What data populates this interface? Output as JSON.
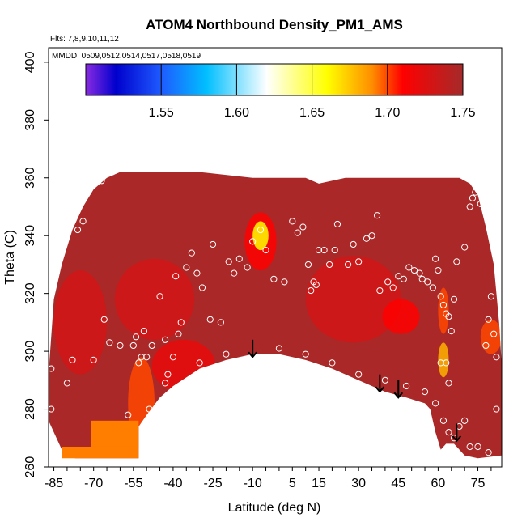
{
  "chart_data": {
    "type": "heatmap",
    "title": "ATOM4 Northbound Density_PM1_AMS",
    "annotations": {
      "flights": "Flts: 7,8,9,10,11,12",
      "dates": "MMDD: 0509,0512,0514,0517,0518,0519"
    },
    "xlabel": "Latitude (deg N)",
    "ylabel": "Theta (C)",
    "xlim": [
      -87,
      84
    ],
    "ylim": [
      260,
      405
    ],
    "x_ticks": [
      -85,
      -70,
      -55,
      -40,
      -25,
      -10,
      5,
      15,
      30,
      45,
      60,
      75
    ],
    "x_tick_labels": [
      "-85",
      "-70",
      "-55",
      "-40",
      "-25",
      "-10",
      "5",
      "15",
      "30",
      "45",
      "60",
      "75"
    ],
    "y_ticks": [
      260,
      280,
      300,
      320,
      340,
      360,
      380,
      400
    ],
    "y_tick_labels": [
      "260",
      "280",
      "300",
      "320",
      "340",
      "360",
      "380",
      "400"
    ],
    "colorbar": {
      "range": [
        1.5,
        1.75
      ],
      "ticks": [
        1.55,
        1.6,
        1.65,
        1.7,
        1.75
      ],
      "tick_labels": [
        "1.55",
        "1.60",
        "1.65",
        "1.70",
        "1.75"
      ],
      "stops": [
        {
          "v": 1.5,
          "c": "#8a2be2"
        },
        {
          "v": 1.52,
          "c": "#0000cd"
        },
        {
          "v": 1.55,
          "c": "#1e5bff"
        },
        {
          "v": 1.58,
          "c": "#00bfff"
        },
        {
          "v": 1.62,
          "c": "#ffffff"
        },
        {
          "v": 1.66,
          "c": "#ffff00"
        },
        {
          "v": 1.69,
          "c": "#ff8c00"
        },
        {
          "v": 1.71,
          "c": "#ff0000"
        },
        {
          "v": 1.75,
          "c": "#a52a2a"
        }
      ]
    },
    "field": {
      "background": 1.748,
      "upper_boundary": [
        [
          -87,
          292
        ],
        [
          -85,
          318
        ],
        [
          -82,
          330
        ],
        [
          -78,
          342
        ],
        [
          -74,
          350
        ],
        [
          -70,
          356
        ],
        [
          -65,
          360
        ],
        [
          -60,
          362
        ],
        [
          -50,
          362
        ],
        [
          -30,
          362
        ],
        [
          -10,
          360
        ],
        [
          10,
          360
        ],
        [
          15,
          358
        ],
        [
          25,
          360
        ],
        [
          40,
          360
        ],
        [
          55,
          360
        ],
        [
          62,
          360
        ],
        [
          68,
          360
        ],
        [
          72,
          358
        ],
        [
          75,
          354
        ],
        [
          78,
          343
        ],
        [
          81,
          330
        ],
        [
          83,
          310
        ],
        [
          84,
          295
        ]
      ],
      "lower_boundary": [
        [
          -87,
          276
        ],
        [
          -82,
          266
        ],
        [
          -77,
          263
        ],
        [
          -72,
          263
        ],
        [
          -60,
          263
        ],
        [
          -53,
          263
        ],
        [
          -53,
          274
        ],
        [
          -50,
          278
        ],
        [
          -45,
          284
        ],
        [
          -40,
          288
        ],
        [
          -30,
          294
        ],
        [
          -20,
          297
        ],
        [
          -10,
          299
        ],
        [
          0,
          299
        ],
        [
          10,
          297
        ],
        [
          20,
          294
        ],
        [
          30,
          290
        ],
        [
          40,
          286
        ],
        [
          48,
          284
        ],
        [
          55,
          282
        ],
        [
          57,
          280
        ],
        [
          59,
          272
        ],
        [
          61,
          266
        ],
        [
          63,
          268
        ],
        [
          66,
          268
        ],
        [
          70,
          264
        ],
        [
          75,
          263
        ],
        [
          84,
          264
        ]
      ],
      "hotspots": [
        {
          "x": -7,
          "y": 340,
          "v": 1.66,
          "rx": 3,
          "ry": 5
        },
        {
          "x": -7,
          "y": 338,
          "v": 1.71,
          "rx": 6,
          "ry": 10
        },
        {
          "x": 62,
          "y": 297,
          "v": 1.68,
          "rx": 2,
          "ry": 6
        },
        {
          "x": 62,
          "y": 314,
          "v": 1.7,
          "rx": 2,
          "ry": 8
        },
        {
          "x": -52,
          "y": 282,
          "v": 1.7,
          "rx": 5,
          "ry": 16
        },
        {
          "x": 80,
          "y": 305,
          "v": 1.7,
          "rx": 4,
          "ry": 6
        },
        {
          "x": 46,
          "y": 312,
          "v": 1.71,
          "rx": 7,
          "ry": 6
        },
        {
          "x": -36,
          "y": 295,
          "v": 1.72,
          "rx": 12,
          "ry": 9
        },
        {
          "x": -47,
          "y": 318,
          "v": 1.73,
          "rx": 15,
          "ry": 14
        },
        {
          "x": 28,
          "y": 318,
          "v": 1.73,
          "rx": 18,
          "ry": 15
        },
        {
          "x": -75,
          "y": 310,
          "v": 1.73,
          "rx": 10,
          "ry": 18
        }
      ],
      "patches": [
        {
          "x0": -82,
          "x1": -53,
          "y0": 263,
          "y1": 267,
          "v": 1.692
        },
        {
          "x0": -71,
          "x1": -53,
          "y0": 267,
          "y1": 276,
          "v": 1.692
        }
      ]
    },
    "points": [
      [
        -86,
        294
      ],
      [
        -86,
        280
      ],
      [
        -84,
        329
      ],
      [
        -83,
        333
      ],
      [
        -80,
        289
      ],
      [
        -78,
        297
      ],
      [
        -76,
        342
      ],
      [
        -74,
        345
      ],
      [
        -67,
        359
      ],
      [
        -63,
        362
      ],
      [
        -60,
        302
      ],
      [
        -57,
        278
      ],
      [
        -55,
        302
      ],
      [
        -54,
        305
      ],
      [
        -53,
        296
      ],
      [
        -52,
        298
      ],
      [
        -51,
        307
      ],
      [
        -50,
        298
      ],
      [
        -49,
        280
      ],
      [
        -48,
        302
      ],
      [
        -45,
        319
      ],
      [
        -43,
        304
      ],
      [
        -43,
        289
      ],
      [
        -42,
        292
      ],
      [
        -39,
        326
      ],
      [
        -38,
        306
      ],
      [
        -37,
        310
      ],
      [
        -35,
        329
      ],
      [
        -33,
        334
      ],
      [
        -31,
        327
      ],
      [
        -29,
        322
      ],
      [
        -26,
        311
      ],
      [
        -25,
        337
      ],
      [
        -22,
        310
      ],
      [
        -19,
        331
      ],
      [
        -17,
        327
      ],
      [
        -15,
        332
      ],
      [
        -12,
        329
      ],
      [
        -10,
        338
      ],
      [
        -7,
        342
      ],
      [
        -5,
        335
      ],
      [
        -2,
        325
      ],
      [
        2,
        324
      ],
      [
        5,
        345
      ],
      [
        7,
        341
      ],
      [
        9,
        343
      ],
      [
        11,
        330
      ],
      [
        12,
        321
      ],
      [
        13,
        324
      ],
      [
        14,
        323
      ],
      [
        15,
        335
      ],
      [
        17,
        335
      ],
      [
        19,
        330
      ],
      [
        21,
        335
      ],
      [
        22,
        344
      ],
      [
        26,
        330
      ],
      [
        28,
        337
      ],
      [
        30,
        331
      ],
      [
        33,
        339
      ],
      [
        35,
        340
      ],
      [
        37,
        347
      ],
      [
        38,
        321
      ],
      [
        41,
        324
      ],
      [
        43,
        322
      ],
      [
        45,
        326
      ],
      [
        47,
        325
      ],
      [
        49,
        329
      ],
      [
        51,
        328
      ],
      [
        53,
        327
      ],
      [
        54,
        325
      ],
      [
        56,
        324
      ],
      [
        58,
        322
      ],
      [
        59,
        332
      ],
      [
        60,
        328
      ],
      [
        61,
        319
      ],
      [
        62,
        316
      ],
      [
        63,
        313
      ],
      [
        64,
        312
      ],
      [
        65,
        307
      ],
      [
        66,
        318
      ],
      [
        67,
        331
      ],
      [
        70,
        336
      ],
      [
        72,
        350
      ],
      [
        73,
        353
      ],
      [
        74,
        355
      ],
      [
        75,
        356
      ],
      [
        76,
        351
      ],
      [
        78,
        302
      ],
      [
        79,
        311
      ],
      [
        80,
        319
      ],
      [
        81,
        306
      ],
      [
        82,
        298
      ],
      [
        -70,
        297
      ],
      [
        -66,
        311
      ],
      [
        -64,
        303
      ],
      [
        -40,
        298
      ],
      [
        -30,
        296
      ],
      [
        -20,
        299
      ],
      [
        -8,
        298
      ],
      [
        0,
        301
      ],
      [
        10,
        299
      ],
      [
        20,
        296
      ],
      [
        30,
        292
      ],
      [
        40,
        290
      ],
      [
        48,
        288
      ],
      [
        55,
        286
      ],
      [
        59,
        282
      ],
      [
        61,
        296
      ],
      [
        63,
        296
      ],
      [
        64,
        289
      ],
      [
        62,
        276
      ],
      [
        64,
        272
      ],
      [
        66,
        270
      ],
      [
        68,
        274
      ],
      [
        70,
        276
      ],
      [
        72,
        267
      ],
      [
        75,
        267
      ],
      [
        79,
        265
      ],
      [
        82,
        280
      ]
    ],
    "arrows": [
      {
        "x": -10,
        "y_top": 304,
        "y_tip": 298
      },
      {
        "x": 38,
        "y_top": 292,
        "y_tip": 286
      },
      {
        "x": 45,
        "y_top": 290,
        "y_tip": 284
      },
      {
        "x": 67,
        "y_top": 275,
        "y_tip": 269
      }
    ]
  }
}
